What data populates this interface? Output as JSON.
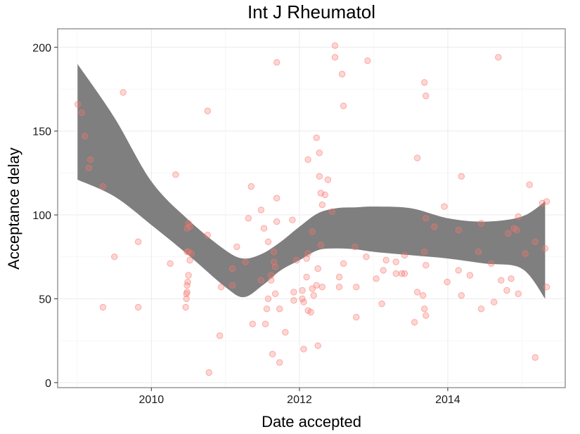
{
  "chart_data": {
    "type": "scatter",
    "title": "Int J Rheumatol",
    "xlabel": "Date accepted",
    "ylabel": "Acceptance delay",
    "xlim": [
      "2008-09-26",
      "2015-08-03"
    ],
    "ylim": [
      -3,
      211
    ],
    "x_ticks": [
      {
        "value": "2010-01-01",
        "label": "2010"
      },
      {
        "value": "2012-01-01",
        "label": "2012"
      },
      {
        "value": "2014-01-01",
        "label": "2014"
      }
    ],
    "y_ticks": [
      0,
      50,
      100,
      150,
      200
    ],
    "grid": true,
    "colors": {
      "point_fill": "#f8766d",
      "point_stroke": "#f8766d",
      "band": "#7f7f7f",
      "panel_border": "#7f7f7f"
    },
    "series": [
      {
        "type": "scatter",
        "points": [
          {
            "x": "2009-01-03",
            "y": 166
          },
          {
            "x": "2009-01-23",
            "y": 161
          },
          {
            "x": "2009-02-07",
            "y": 147
          },
          {
            "x": "2009-03-06",
            "y": 133
          },
          {
            "x": "2009-02-27",
            "y": 128
          },
          {
            "x": "2009-05-07",
            "y": 117
          },
          {
            "x": "2009-05-07",
            "y": 45
          },
          {
            "x": "2009-07-03",
            "y": 75
          },
          {
            "x": "2009-08-15",
            "y": 173
          },
          {
            "x": "2009-10-28",
            "y": 84
          },
          {
            "x": "2009-10-28",
            "y": 45
          },
          {
            "x": "2010-04-04",
            "y": 71
          },
          {
            "x": "2010-05-01",
            "y": 124
          },
          {
            "x": "2010-06-26",
            "y": 92
          },
          {
            "x": "2010-07-03",
            "y": 95
          },
          {
            "x": "2010-07-10",
            "y": 93
          },
          {
            "x": "2010-06-26",
            "y": 78
          },
          {
            "x": "2010-07-03",
            "y": 78
          },
          {
            "x": "2010-07-17",
            "y": 77
          },
          {
            "x": "2010-07-10",
            "y": 73
          },
          {
            "x": "2010-07-03",
            "y": 64
          },
          {
            "x": "2010-06-29",
            "y": 60
          },
          {
            "x": "2010-06-26",
            "y": 58
          },
          {
            "x": "2010-06-26",
            "y": 54
          },
          {
            "x": "2010-06-23",
            "y": 53
          },
          {
            "x": "2010-06-23",
            "y": 50
          },
          {
            "x": "2010-06-19",
            "y": 45
          },
          {
            "x": "2010-10-05",
            "y": 162
          },
          {
            "x": "2010-10-05",
            "y": 88
          },
          {
            "x": "2010-10-12",
            "y": 6
          },
          {
            "x": "2010-12-04",
            "y": 28
          },
          {
            "x": "2010-12-11",
            "y": 57
          },
          {
            "x": "2011-02-05",
            "y": 68
          },
          {
            "x": "2011-02-05",
            "y": 58
          },
          {
            "x": "2011-02-26",
            "y": 81
          },
          {
            "x": "2011-04-10",
            "y": 72
          },
          {
            "x": "2011-04-24",
            "y": 98
          },
          {
            "x": "2011-05-08",
            "y": 117
          },
          {
            "x": "2011-05-15",
            "y": 35
          },
          {
            "x": "2011-06-26",
            "y": 103
          },
          {
            "x": "2011-06-26",
            "y": 61
          },
          {
            "x": "2011-07-10",
            "y": 92
          },
          {
            "x": "2011-07-17",
            "y": 35
          },
          {
            "x": "2011-07-31",
            "y": 84
          },
          {
            "x": "2011-07-31",
            "y": 50
          },
          {
            "x": "2011-07-24",
            "y": 44
          },
          {
            "x": "2011-08-14",
            "y": 64
          },
          {
            "x": "2011-08-14",
            "y": 61
          },
          {
            "x": "2011-08-21",
            "y": 17
          },
          {
            "x": "2011-08-28",
            "y": 78
          },
          {
            "x": "2011-08-28",
            "y": 72
          },
          {
            "x": "2011-09-04",
            "y": 69
          },
          {
            "x": "2011-09-04",
            "y": 53
          },
          {
            "x": "2011-09-11",
            "y": 191
          },
          {
            "x": "2011-09-11",
            "y": 110
          },
          {
            "x": "2011-09-11",
            "y": 96
          },
          {
            "x": "2011-09-25",
            "y": 44
          },
          {
            "x": "2011-09-25",
            "y": 12
          },
          {
            "x": "2011-10-23",
            "y": 30
          },
          {
            "x": "2011-11-27",
            "y": 97
          },
          {
            "x": "2011-12-04",
            "y": 54
          },
          {
            "x": "2011-12-04",
            "y": 49
          },
          {
            "x": "2011-12-18",
            "y": 73
          },
          {
            "x": "2012-01-15",
            "y": 50
          },
          {
            "x": "2012-01-15",
            "y": 55
          },
          {
            "x": "2012-01-22",
            "y": 48
          },
          {
            "x": "2012-01-22",
            "y": 20
          },
          {
            "x": "2012-02-05",
            "y": 74
          },
          {
            "x": "2012-02-05",
            "y": 63
          },
          {
            "x": "2012-02-12",
            "y": 133
          },
          {
            "x": "2012-02-12",
            "y": 43
          },
          {
            "x": "2012-02-12",
            "y": 77
          },
          {
            "x": "2012-02-26",
            "y": 42
          },
          {
            "x": "2012-03-04",
            "y": 90
          },
          {
            "x": "2012-03-04",
            "y": 56
          },
          {
            "x": "2012-03-11",
            "y": 52
          },
          {
            "x": "2012-03-25",
            "y": 146
          },
          {
            "x": "2012-03-25",
            "y": 58
          },
          {
            "x": "2012-04-01",
            "y": 22
          },
          {
            "x": "2012-04-01",
            "y": 68
          },
          {
            "x": "2012-04-08",
            "y": 137
          },
          {
            "x": "2012-04-08",
            "y": 123
          },
          {
            "x": "2012-04-15",
            "y": 113
          },
          {
            "x": "2012-04-15",
            "y": 82
          },
          {
            "x": "2012-04-22",
            "y": 106
          },
          {
            "x": "2012-04-22",
            "y": 57
          },
          {
            "x": "2012-05-06",
            "y": 112
          },
          {
            "x": "2012-05-20",
            "y": 121
          },
          {
            "x": "2012-06-10",
            "y": 102
          },
          {
            "x": "2012-06-24",
            "y": 201
          },
          {
            "x": "2012-06-24",
            "y": 194
          },
          {
            "x": "2012-07-15",
            "y": 63
          },
          {
            "x": "2012-07-15",
            "y": 57
          },
          {
            "x": "2012-07-29",
            "y": 184
          },
          {
            "x": "2012-08-05",
            "y": 165
          },
          {
            "x": "2012-08-05",
            "y": 71
          },
          {
            "x": "2012-09-30",
            "y": 81
          },
          {
            "x": "2012-10-07",
            "y": 57
          },
          {
            "x": "2012-10-07",
            "y": 39
          },
          {
            "x": "2012-11-25",
            "y": 75
          },
          {
            "x": "2012-12-02",
            "y": 192
          },
          {
            "x": "2013-01-13",
            "y": 62
          },
          {
            "x": "2013-02-17",
            "y": 67
          },
          {
            "x": "2013-02-10",
            "y": 47
          },
          {
            "x": "2013-03-03",
            "y": 73
          },
          {
            "x": "2013-04-21",
            "y": 65
          },
          {
            "x": "2013-04-21",
            "y": 72
          },
          {
            "x": "2013-05-19",
            "y": 65
          },
          {
            "x": "2013-06-02",
            "y": 76
          },
          {
            "x": "2013-06-02",
            "y": 65
          },
          {
            "x": "2013-07-21",
            "y": 36
          },
          {
            "x": "2013-08-04",
            "y": 134
          },
          {
            "x": "2013-08-04",
            "y": 54
          },
          {
            "x": "2013-09-08",
            "y": 179
          },
          {
            "x": "2013-09-15",
            "y": 171
          },
          {
            "x": "2013-09-15",
            "y": 98
          },
          {
            "x": "2013-09-08",
            "y": 78
          },
          {
            "x": "2013-09-15",
            "y": 70
          },
          {
            "x": "2013-09-01",
            "y": 52
          },
          {
            "x": "2013-09-08",
            "y": 44
          },
          {
            "x": "2013-09-15",
            "y": 40
          },
          {
            "x": "2013-10-27",
            "y": 93
          },
          {
            "x": "2013-12-15",
            "y": 105
          },
          {
            "x": "2013-12-29",
            "y": 60
          },
          {
            "x": "2014-03-09",
            "y": 123
          },
          {
            "x": "2014-02-23",
            "y": 91
          },
          {
            "x": "2014-02-23",
            "y": 67
          },
          {
            "x": "2014-03-09",
            "y": 52
          },
          {
            "x": "2014-04-20",
            "y": 64
          },
          {
            "x": "2014-06-01",
            "y": 78
          },
          {
            "x": "2014-06-15",
            "y": 95
          },
          {
            "x": "2014-06-15",
            "y": 44
          },
          {
            "x": "2014-08-03",
            "y": 71
          },
          {
            "x": "2014-08-17",
            "y": 48
          },
          {
            "x": "2014-09-07",
            "y": 194
          },
          {
            "x": "2014-09-21",
            "y": 61
          },
          {
            "x": "2014-10-19",
            "y": 55
          },
          {
            "x": "2014-10-26",
            "y": 89
          },
          {
            "x": "2014-11-09",
            "y": 62
          },
          {
            "x": "2014-11-23",
            "y": 92
          },
          {
            "x": "2014-12-07",
            "y": 91
          },
          {
            "x": "2014-12-14",
            "y": 99
          },
          {
            "x": "2014-12-14",
            "y": 53
          },
          {
            "x": "2015-01-18",
            "y": 77
          },
          {
            "x": "2015-02-08",
            "y": 118
          },
          {
            "x": "2015-03-08",
            "y": 84
          },
          {
            "x": "2015-03-08",
            "y": 15
          },
          {
            "x": "2015-04-12",
            "y": 107
          },
          {
            "x": "2015-04-26",
            "y": 80
          },
          {
            "x": "2015-05-03",
            "y": 108
          },
          {
            "x": "2015-05-03",
            "y": 57
          }
        ]
      },
      {
        "type": "confidence-band",
        "x": [
          "2009-01-02",
          "2009-07-03",
          "2010-01-01",
          "2010-07-03",
          "2011-01-01",
          "2011-04-02",
          "2011-07-03",
          "2011-10-01",
          "2012-01-01",
          "2012-04-01",
          "2012-07-01",
          "2012-10-01",
          "2013-01-01",
          "2013-07-03",
          "2014-01-01",
          "2014-07-03",
          "2015-01-01",
          "2015-04-26"
        ],
        "upper": [
          190,
          158,
          120,
          97,
          79,
          74,
          77,
          84,
          93,
          101,
          104,
          104.5,
          105,
          104,
          98,
          96,
          99,
          108
        ],
        "lower": [
          121,
          111,
          94,
          76,
          57,
          51,
          58,
          67,
          73,
          79,
          80,
          79.5,
          78,
          76,
          74,
          71,
          68,
          50
        ]
      }
    ]
  }
}
